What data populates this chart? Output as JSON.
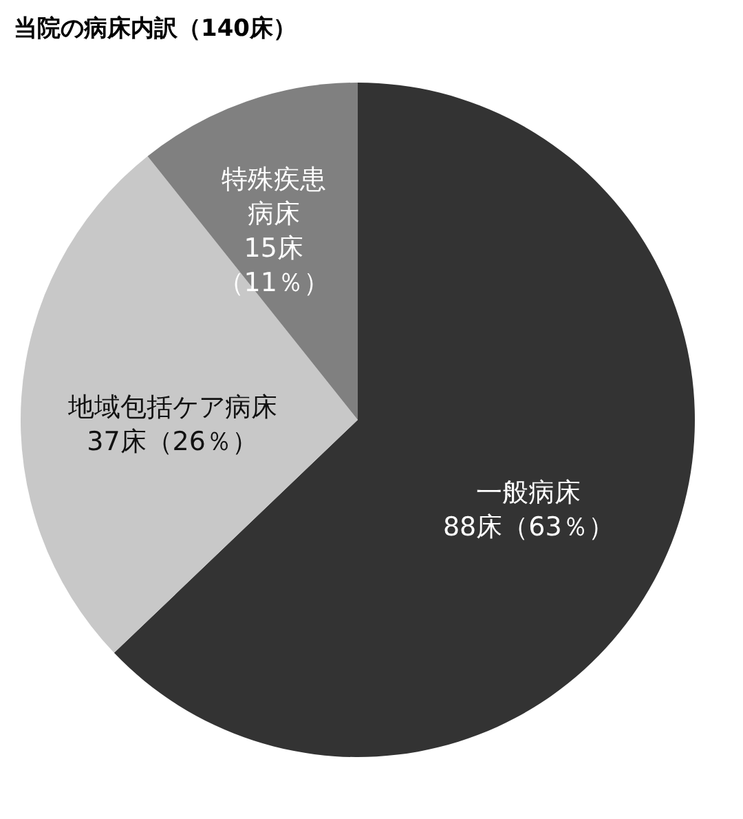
{
  "chart_data": {
    "type": "pie",
    "title": "当院の病床内訳（140床）",
    "categories": [
      "一般病床",
      "地域包括ケア病床",
      "特殊疾患病床"
    ],
    "values": [
      88,
      37,
      15
    ],
    "colors": [
      "#333333",
      "#c8c8c8",
      "#808080"
    ],
    "value_labels": [
      "88床（63％）",
      "37床（26％）",
      "15床（11％）"
    ],
    "legend": false
  }
}
